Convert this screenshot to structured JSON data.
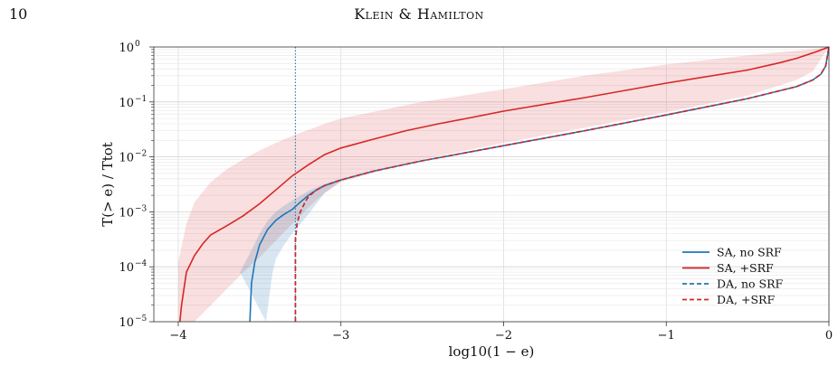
{
  "header": {
    "page_number": "10",
    "running_head": "Klein & Hamilton"
  },
  "chart_data": {
    "type": "line",
    "xlabel": "log10(1 − e)",
    "ylabel": "T(> e) / Ttot",
    "xlim": [
      -4.15,
      0
    ],
    "ylim": [
      1e-05,
      1
    ],
    "yscale": "log",
    "grid": true,
    "legend_position": "lower-right",
    "x_ticks": [
      -4,
      -3,
      -2,
      -1,
      0
    ],
    "x_tick_labels": [
      "−4",
      "−3",
      "−2",
      "−1",
      "0"
    ],
    "y_ticks": [
      1e-05,
      0.0001,
      0.001,
      0.01,
      0.1,
      1
    ],
    "y_tick_labels": [
      [
        "10",
        "−5"
      ],
      [
        "10",
        "−4"
      ],
      [
        "10",
        "−3"
      ],
      [
        "10",
        "−2"
      ],
      [
        "10",
        "−1"
      ],
      [
        "10",
        "0"
      ]
    ],
    "vline": {
      "x": -3.28,
      "color": "#1f77b4"
    },
    "series": [
      {
        "name": "SA, no SRF",
        "color": "#1f77b4",
        "style": "solid",
        "points": [
          [
            -3.56,
            1e-05
          ],
          [
            -3.55,
            5e-05
          ],
          [
            -3.53,
            0.00012
          ],
          [
            -3.5,
            0.00025
          ],
          [
            -3.45,
            0.00048
          ],
          [
            -3.4,
            0.0007
          ],
          [
            -3.35,
            0.0009
          ],
          [
            -3.3,
            0.0011
          ],
          [
            -3.25,
            0.0015
          ],
          [
            -3.2,
            0.002
          ],
          [
            -3.15,
            0.0025
          ],
          [
            -3.1,
            0.003
          ],
          [
            -3.0,
            0.0038
          ],
          [
            -2.8,
            0.0055
          ],
          [
            -2.5,
            0.0085
          ],
          [
            -2.0,
            0.016
          ],
          [
            -1.5,
            0.03
          ],
          [
            -1.0,
            0.058
          ],
          [
            -0.5,
            0.115
          ],
          [
            -0.2,
            0.19
          ],
          [
            -0.1,
            0.25
          ],
          [
            -0.05,
            0.32
          ],
          [
            -0.02,
            0.45
          ],
          [
            0,
            1
          ]
        ]
      },
      {
        "name": "SA, +SRF",
        "color": "#d62728",
        "style": "solid",
        "points": [
          [
            -3.99,
            1e-05
          ],
          [
            -3.98,
            2e-05
          ],
          [
            -3.95,
            8e-05
          ],
          [
            -3.9,
            0.00016
          ],
          [
            -3.85,
            0.00026
          ],
          [
            -3.8,
            0.00038
          ],
          [
            -3.7,
            0.00056
          ],
          [
            -3.6,
            0.00085
          ],
          [
            -3.5,
            0.0014
          ],
          [
            -3.4,
            0.0025
          ],
          [
            -3.3,
            0.0045
          ],
          [
            -3.2,
            0.0072
          ],
          [
            -3.1,
            0.011
          ],
          [
            -3.0,
            0.0145
          ],
          [
            -2.8,
            0.021
          ],
          [
            -2.6,
            0.03
          ],
          [
            -2.4,
            0.04
          ],
          [
            -2.2,
            0.052
          ],
          [
            -2.0,
            0.068
          ],
          [
            -1.5,
            0.12
          ],
          [
            -1.0,
            0.22
          ],
          [
            -0.5,
            0.38
          ],
          [
            -0.3,
            0.52
          ],
          [
            -0.2,
            0.62
          ],
          [
            -0.1,
            0.78
          ],
          [
            -0.05,
            0.88
          ],
          [
            0,
            1
          ]
        ]
      },
      {
        "name": "DA, no SRF",
        "color": "#1f77b4",
        "style": "dashed",
        "points": [
          [
            -3.28,
            1e-05
          ],
          [
            -3.28,
            0.0003
          ],
          [
            -3.27,
            0.0006
          ],
          [
            -3.25,
            0.001
          ],
          [
            -3.22,
            0.0015
          ],
          [
            -3.2,
            0.0019
          ],
          [
            -3.15,
            0.0025
          ],
          [
            -3.1,
            0.003
          ],
          [
            -3.0,
            0.0038
          ],
          [
            -2.8,
            0.0055
          ],
          [
            -2.5,
            0.0085
          ],
          [
            -2.0,
            0.016
          ],
          [
            -1.5,
            0.03
          ],
          [
            -1.0,
            0.058
          ],
          [
            -0.5,
            0.115
          ],
          [
            -0.2,
            0.19
          ],
          [
            -0.1,
            0.25
          ],
          [
            -0.05,
            0.32
          ],
          [
            -0.02,
            0.45
          ],
          [
            0,
            1
          ]
        ]
      },
      {
        "name": "DA, +SRF",
        "color": "#d62728",
        "style": "dashed",
        "points": [
          [
            -3.28,
            1e-05
          ],
          [
            -3.28,
            0.0003
          ],
          [
            -3.27,
            0.0006
          ],
          [
            -3.25,
            0.001
          ],
          [
            -3.22,
            0.0015
          ],
          [
            -3.2,
            0.0019
          ],
          [
            -3.15,
            0.0025
          ],
          [
            -3.1,
            0.003
          ],
          [
            -3.0,
            0.0038
          ],
          [
            -2.8,
            0.0055
          ],
          [
            -2.5,
            0.0085
          ],
          [
            -2.0,
            0.016
          ],
          [
            -1.5,
            0.03
          ],
          [
            -1.0,
            0.058
          ],
          [
            -0.5,
            0.115
          ],
          [
            -0.2,
            0.19
          ],
          [
            -0.1,
            0.25
          ],
          [
            -0.05,
            0.32
          ],
          [
            -0.02,
            0.45
          ],
          [
            0,
            1
          ]
        ]
      }
    ],
    "bands": [
      {
        "series": "SA, +SRF",
        "color": "#d62728",
        "opacity": 0.15,
        "upper": [
          [
            -4.0,
            0.00012
          ],
          [
            -3.95,
            0.0006
          ],
          [
            -3.9,
            0.0015
          ],
          [
            -3.8,
            0.0035
          ],
          [
            -3.7,
            0.006
          ],
          [
            -3.6,
            0.009
          ],
          [
            -3.5,
            0.013
          ],
          [
            -3.4,
            0.018
          ],
          [
            -3.3,
            0.024
          ],
          [
            -3.2,
            0.031
          ],
          [
            -3.1,
            0.04
          ],
          [
            -3.0,
            0.05
          ],
          [
            -2.5,
            0.1
          ],
          [
            -2.0,
            0.17
          ],
          [
            -1.5,
            0.3
          ],
          [
            -1.0,
            0.48
          ],
          [
            -0.5,
            0.7
          ],
          [
            -0.2,
            0.85
          ],
          [
            0,
            1
          ]
        ],
        "lower": [
          [
            -4.0,
            1e-05
          ],
          [
            -3.9,
            1e-05
          ],
          [
            -3.8,
            2e-05
          ],
          [
            -3.7,
            4e-05
          ],
          [
            -3.6,
            8e-05
          ],
          [
            -3.5,
            0.00015
          ],
          [
            -3.4,
            0.0003
          ],
          [
            -3.3,
            0.0006
          ],
          [
            -3.2,
            0.0012
          ],
          [
            -3.1,
            0.0022
          ],
          [
            -3.0,
            0.0035
          ],
          [
            -2.5,
            0.009
          ],
          [
            -2.0,
            0.018
          ],
          [
            -1.5,
            0.034
          ],
          [
            -1.0,
            0.065
          ],
          [
            -0.5,
            0.13
          ],
          [
            -0.2,
            0.25
          ],
          [
            -0.1,
            0.36
          ],
          [
            0,
            1
          ]
        ]
      },
      {
        "series": "SA, no SRF",
        "color": "#1f77b4",
        "opacity": 0.18,
        "upper": [
          [
            -3.62,
            8e-05
          ],
          [
            -3.55,
            0.0002
          ],
          [
            -3.5,
            0.0004
          ],
          [
            -3.45,
            0.0007
          ],
          [
            -3.4,
            0.001
          ],
          [
            -3.35,
            0.0013
          ],
          [
            -3.3,
            0.0016
          ],
          [
            -3.2,
            0.0024
          ],
          [
            -3.1,
            0.0032
          ],
          [
            -3.0,
            0.004
          ]
        ],
        "lower": [
          [
            -3.46,
            1e-05
          ],
          [
            -3.44,
            3e-05
          ],
          [
            -3.42,
            8e-05
          ],
          [
            -3.4,
            0.00014
          ],
          [
            -3.35,
            0.00025
          ],
          [
            -3.3,
            0.0004
          ],
          [
            -3.2,
            0.0009
          ],
          [
            -3.1,
            0.0022
          ],
          [
            -3.0,
            0.0036
          ]
        ]
      }
    ]
  }
}
